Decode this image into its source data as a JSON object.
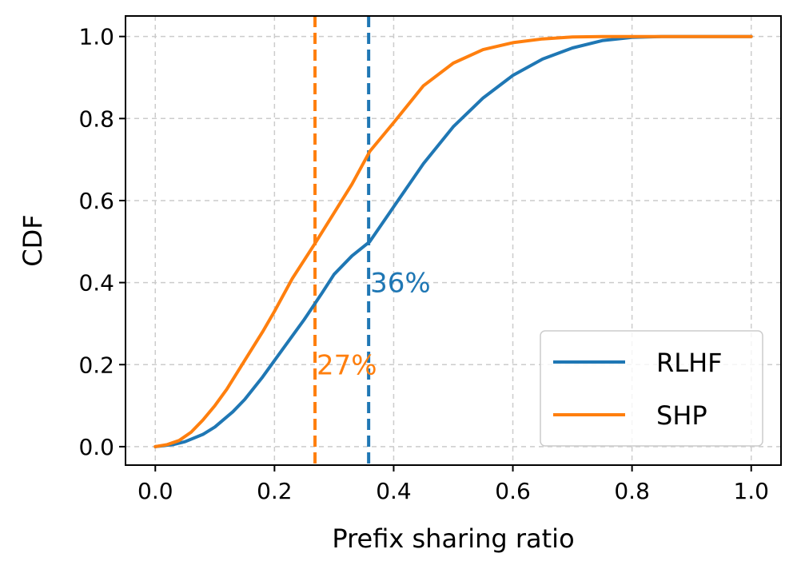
{
  "chart_data": {
    "type": "line",
    "xlabel": "Prefix sharing ratio",
    "ylabel": "CDF",
    "xlim": [
      -0.05,
      1.05
    ],
    "ylim": [
      -0.045,
      1.05
    ],
    "xticks": [
      "0.0",
      "0.2",
      "0.4",
      "0.6",
      "0.8",
      "1.0"
    ],
    "yticks": [
      "0.0",
      "0.2",
      "0.4",
      "0.6",
      "0.8",
      "1.0"
    ],
    "grid": true,
    "legend_position": "lower-right",
    "series": [
      {
        "name": "RLHF",
        "color": "#1f77b4",
        "x": [
          0.0,
          0.03,
          0.05,
          0.08,
          0.1,
          0.13,
          0.15,
          0.18,
          0.2,
          0.23,
          0.25,
          0.28,
          0.3,
          0.33,
          0.36,
          0.4,
          0.45,
          0.5,
          0.55,
          0.6,
          0.65,
          0.7,
          0.75,
          0.8,
          0.85,
          0.9,
          0.95,
          1.0
        ],
        "y": [
          0.0,
          0.005,
          0.012,
          0.03,
          0.048,
          0.085,
          0.115,
          0.17,
          0.21,
          0.27,
          0.31,
          0.375,
          0.42,
          0.465,
          0.5,
          0.585,
          0.69,
          0.78,
          0.85,
          0.905,
          0.945,
          0.972,
          0.99,
          0.998,
          1.0,
          1.0,
          1.0,
          1.0
        ]
      },
      {
        "name": "SHP",
        "color": "#ff7f0e",
        "x": [
          0.0,
          0.02,
          0.04,
          0.06,
          0.08,
          0.1,
          0.12,
          0.15,
          0.18,
          0.2,
          0.23,
          0.25,
          0.27,
          0.3,
          0.33,
          0.36,
          0.4,
          0.45,
          0.5,
          0.55,
          0.6,
          0.65,
          0.7,
          0.75,
          0.8,
          0.85,
          0.9,
          0.95,
          1.0
        ],
        "y": [
          0.0,
          0.005,
          0.015,
          0.035,
          0.065,
          0.1,
          0.14,
          0.21,
          0.28,
          0.33,
          0.41,
          0.455,
          0.5,
          0.57,
          0.64,
          0.72,
          0.79,
          0.88,
          0.935,
          0.968,
          0.985,
          0.994,
          0.999,
          1.0,
          1.0,
          1.0,
          1.0,
          1.0,
          1.0
        ]
      }
    ],
    "vlines": [
      {
        "x": 0.358,
        "color": "#1f77b4",
        "label": "36%",
        "label_y": 0.4
      },
      {
        "x": 0.268,
        "color": "#ff7f0e",
        "label": "27%",
        "label_y": 0.2
      }
    ]
  }
}
